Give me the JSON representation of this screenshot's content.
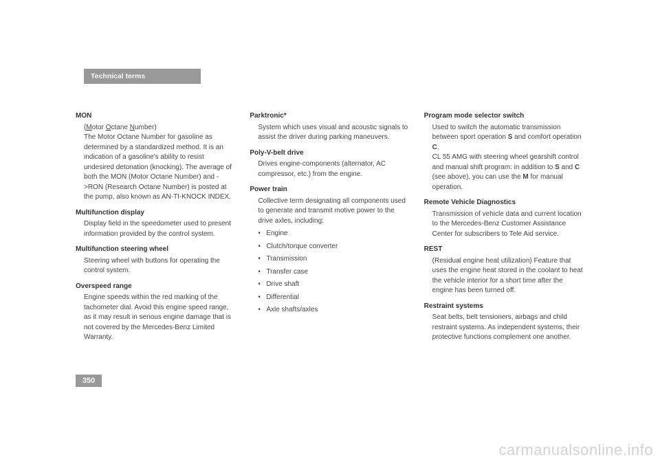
{
  "header": "Technical terms",
  "pageNumber": "350",
  "watermark": "carmanualsonline.info",
  "col1": {
    "t1": "MON",
    "d1a": "(",
    "d1b": "M",
    "d1c": "otor ",
    "d1d": "O",
    "d1e": "ctane ",
    "d1f": "N",
    "d1g": "umber)",
    "d1h": "The Motor Octane Number for gasoline as determined by a standardized method. It is an indication of a gasoline's ability to resist undesired detonation (knocking). The average of both the MON (Motor Octane Number) and ->RON (Research Octane Number) is posted at the pump, also known as AN-TI-KNOCK INDEX.",
    "t2": "Multifunction display",
    "d2": "Display field in the speedometer used to present information provided by the control system.",
    "t3": "Multifunction steering wheel",
    "d3": "Steering wheel with buttons for operating the control system.",
    "t4": "Overspeed range",
    "d4": "Engine speeds within the red marking of the tachometer dial. Avoid this engine speed range, as it may result in serious engine damage that is not covered by the Mercedes-Benz Limited Warranty."
  },
  "col2": {
    "t1": "Parktronic*",
    "d1": "System which uses visual and acoustic signals to assist the driver during parking maneuvers.",
    "t2": "Poly-V-belt drive",
    "d2": "Drives engine-components (alternator, AC compressor, etc.) from the engine.",
    "t3": "Power train",
    "d3": "Collective term designating all components used to generate and transmit motive power to the drive axles, including:",
    "li1": "Engine",
    "li2": "Clutch/torque converter",
    "li3": "Transmission",
    "li4": "Transfer case",
    "li5": "Drive shaft",
    "li6": "Differential",
    "li7": "Axle shafts/axles"
  },
  "col3": {
    "t1": "Program mode selector switch",
    "d1a": "Used to switch the automatic transmission between sport operation ",
    "d1b": "S",
    "d1c": " and comfort operation ",
    "d1d": "C",
    "d1e": ".",
    "d1f": "CL 55 AMG with steering wheel gearshift control and manual shift program: in addition to ",
    "d1g": "S",
    "d1h": " and ",
    "d1i": "C",
    "d1j": " (see above), you can use the ",
    "d1k": "M",
    "d1l": " for manual operation.",
    "t2": "Remote Vehicle Diagnostics",
    "d2": "Transmission of vehicle data and current location to the Mercedes-Benz Customer Assistance Center for subscribers to Tele Aid service.",
    "t3": "REST",
    "d3": "(Residual engine heat utilization) Feature that uses the engine heat stored in the coolant to heat the vehicle interior for a short time after the engine has been turned off.",
    "t4": "Restraint systems",
    "d4": "Seat belts, belt tensioners, airbags and child restraint systems. As independent systems, their protective functions complement one another."
  }
}
